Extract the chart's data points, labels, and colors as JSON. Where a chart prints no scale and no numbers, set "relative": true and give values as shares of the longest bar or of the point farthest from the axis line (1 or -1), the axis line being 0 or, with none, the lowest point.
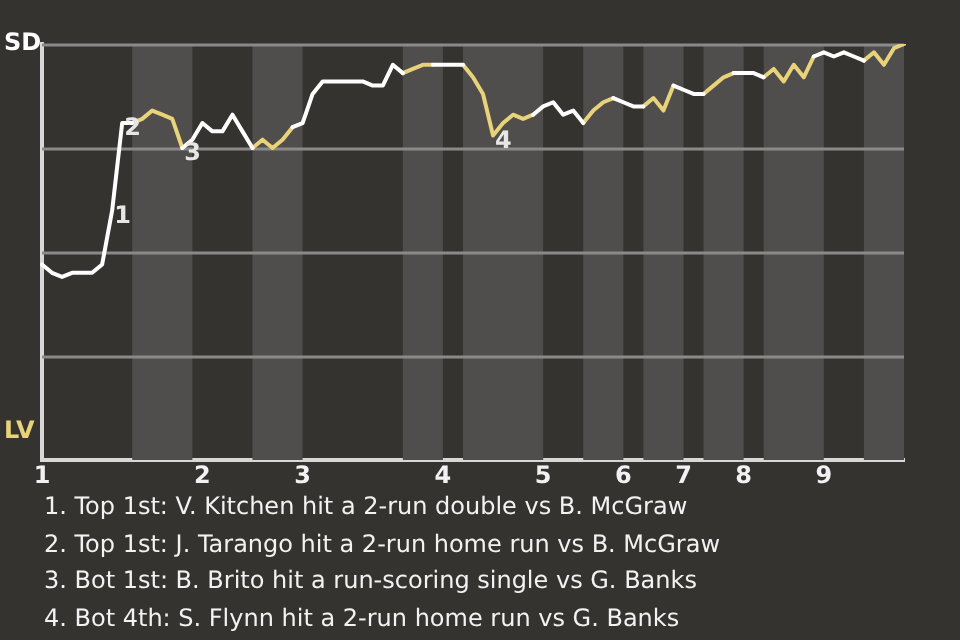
{
  "chart_data": {
    "type": "line",
    "relative": true,
    "categories": [
      "1",
      null,
      null,
      null,
      null,
      null,
      null,
      null,
      null,
      null,
      null,
      null,
      null,
      null,
      null,
      null,
      "2",
      null,
      null,
      null,
      null,
      null,
      null,
      null,
      null,
      null,
      "3",
      null,
      null,
      null,
      null,
      null,
      null,
      null,
      null,
      null,
      null,
      null,
      null,
      null,
      "4",
      null,
      null,
      null,
      null,
      null,
      null,
      null,
      null,
      null,
      "5",
      null,
      null,
      null,
      null,
      null,
      null,
      null,
      "6",
      null,
      null,
      null,
      null,
      null,
      "7",
      null,
      null,
      null,
      null,
      null,
      "8",
      null,
      null,
      null,
      null,
      null,
      null,
      null,
      "9",
      null,
      null,
      null,
      null,
      null,
      null,
      null,
      null
    ],
    "grid": "y",
    "legend": false,
    "marker": "none",
    "line_style": "solid",
    "series": [
      {
        "color": "#ffffff",
        "values": [
          0.47,
          0.45,
          0.44,
          0.45,
          0.45,
          0.45,
          0.47,
          0.6,
          0.81,
          0.81,
          null,
          null,
          null,
          null,
          0.75,
          0.77,
          0.81,
          0.79,
          0.79,
          0.83,
          0.79,
          0.75,
          null,
          null,
          null,
          0.8,
          0.81,
          0.88,
          0.91,
          0.91,
          0.91,
          0.91,
          0.91,
          0.9,
          0.9,
          0.95,
          0.93,
          null,
          null,
          0.95,
          0.95,
          0.95,
          0.95,
          null,
          null,
          null,
          null,
          null,
          null,
          0.83,
          0.85,
          0.86,
          0.83,
          0.84,
          0.81,
          null,
          null,
          0.87,
          0.86,
          0.85,
          0.85,
          null,
          null,
          0.9,
          0.89,
          0.88,
          0.88,
          null,
          null,
          0.93,
          0.93,
          0.93,
          0.92,
          null,
          null,
          null,
          null,
          0.97,
          0.98,
          0.97,
          0.98,
          0.97,
          0.96,
          null,
          null,
          null,
          null
        ]
      },
      {
        "color": "#e8d27a",
        "values": [
          null,
          null,
          null,
          null,
          null,
          null,
          null,
          null,
          null,
          0.81,
          0.82,
          0.84,
          0.83,
          0.82,
          0.75,
          null,
          null,
          null,
          null,
          null,
          null,
          0.75,
          0.77,
          0.75,
          0.77,
          0.8,
          null,
          null,
          null,
          null,
          null,
          null,
          null,
          null,
          null,
          null,
          0.93,
          0.94,
          0.95,
          0.95,
          null,
          null,
          0.95,
          0.92,
          0.88,
          0.78,
          0.81,
          0.83,
          0.82,
          0.83,
          null,
          null,
          null,
          null,
          0.81,
          0.84,
          0.86,
          0.87,
          null,
          null,
          0.85,
          0.87,
          0.84,
          0.9,
          null,
          null,
          0.88,
          0.9,
          0.92,
          0.93,
          null,
          null,
          0.92,
          0.94,
          0.91,
          0.95,
          0.92,
          0.97,
          null,
          null,
          null,
          null,
          0.96,
          0.98,
          0.95,
          0.99,
          1.0
        ]
      }
    ],
    "annotations": [
      "SD",
      "LV",
      {
        "text": "1",
        "y": 0.6
      },
      {
        "text": "2",
        "y": 0.81
      },
      {
        "text": "3",
        "y": 0.75
      },
      {
        "text": "4",
        "y": 0.78
      },
      "1. Top 1st: V. Kitchen hit a 2-run double vs B. McGraw",
      "2. Top 1st: J. Tarango hit a 2-run home run vs B. McGraw",
      "3. Bot 1st: B. Brito hit a run-scoring single vs G. Banks",
      "4. Bot 4th: S. Flynn hit a 2-run home run vs G. Banks"
    ]
  }
}
